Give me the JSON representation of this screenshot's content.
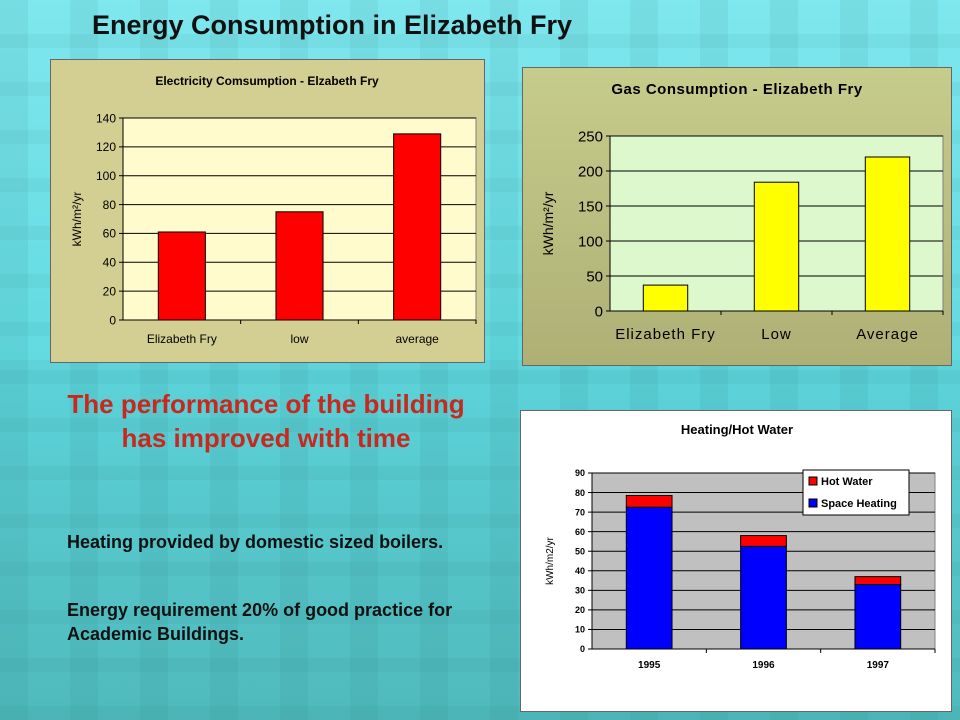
{
  "page": {
    "title": "Energy Consumption in Elizabeth Fry"
  },
  "headline": "The performance of the building has improved with time",
  "paragraphs": [
    "Heating provided by domestic sized boilers.",
    "Energy requirement 20% of good practice for Academic Buildings."
  ],
  "chart_data": [
    {
      "id": "electricity",
      "type": "bar",
      "title": "Electricity Comsumption - Elzabeth Fry",
      "ylabel": "kWh/m²/yr",
      "xlabel": "",
      "categories": [
        "Elizabeth Fry",
        "low",
        "average"
      ],
      "series": [
        {
          "values": [
            61,
            75,
            129
          ]
        }
      ],
      "ylim": [
        0,
        140
      ],
      "yticks": [
        0,
        20,
        40,
        60,
        80,
        100,
        120,
        140
      ],
      "grid": true,
      "colors": {
        "bar": "#ff0000",
        "plot_bg": "#fffbcc",
        "panel_bg": "#d3ce92"
      }
    },
    {
      "id": "gas",
      "type": "bar",
      "title": "Gas Consumption - Elizabeth Fry",
      "ylabel": "kWh/m²/yr",
      "xlabel": "",
      "categories": [
        "Elizabeth Fry",
        "Low",
        "Average"
      ],
      "series": [
        {
          "values": [
            37,
            184,
            220
          ]
        }
      ],
      "ylim": [
        0,
        250
      ],
      "yticks": [
        0,
        50,
        100,
        150,
        200,
        250
      ],
      "grid": true,
      "colors": {
        "bar": "#ffff00",
        "plot_bg": "#ddf8cc",
        "panel_bg": "#c6cc8c"
      }
    },
    {
      "id": "heating",
      "type": "bar",
      "stacked": true,
      "title": "Heating/Hot Water",
      "ylabel": "kWh/m2/yr",
      "xlabel": "",
      "categories": [
        "1995",
        "1996",
        "1997"
      ],
      "series": [
        {
          "name": "Space Heating",
          "values": [
            72.5,
            52.5,
            33
          ],
          "color": "#0000ff"
        },
        {
          "name": "Hot Water",
          "values": [
            6,
            5.5,
            4
          ],
          "color": "#ff0000"
        }
      ],
      "legend_order": [
        "Hot Water",
        "Space Heating"
      ],
      "legend": "top-right",
      "ylim": [
        0,
        90
      ],
      "yticks": [
        0,
        10,
        20,
        30,
        40,
        50,
        60,
        70,
        80,
        90
      ],
      "grid": true,
      "colors": {
        "plot_bg": "#c0c0c0",
        "panel_bg": "#ffffff"
      }
    }
  ]
}
